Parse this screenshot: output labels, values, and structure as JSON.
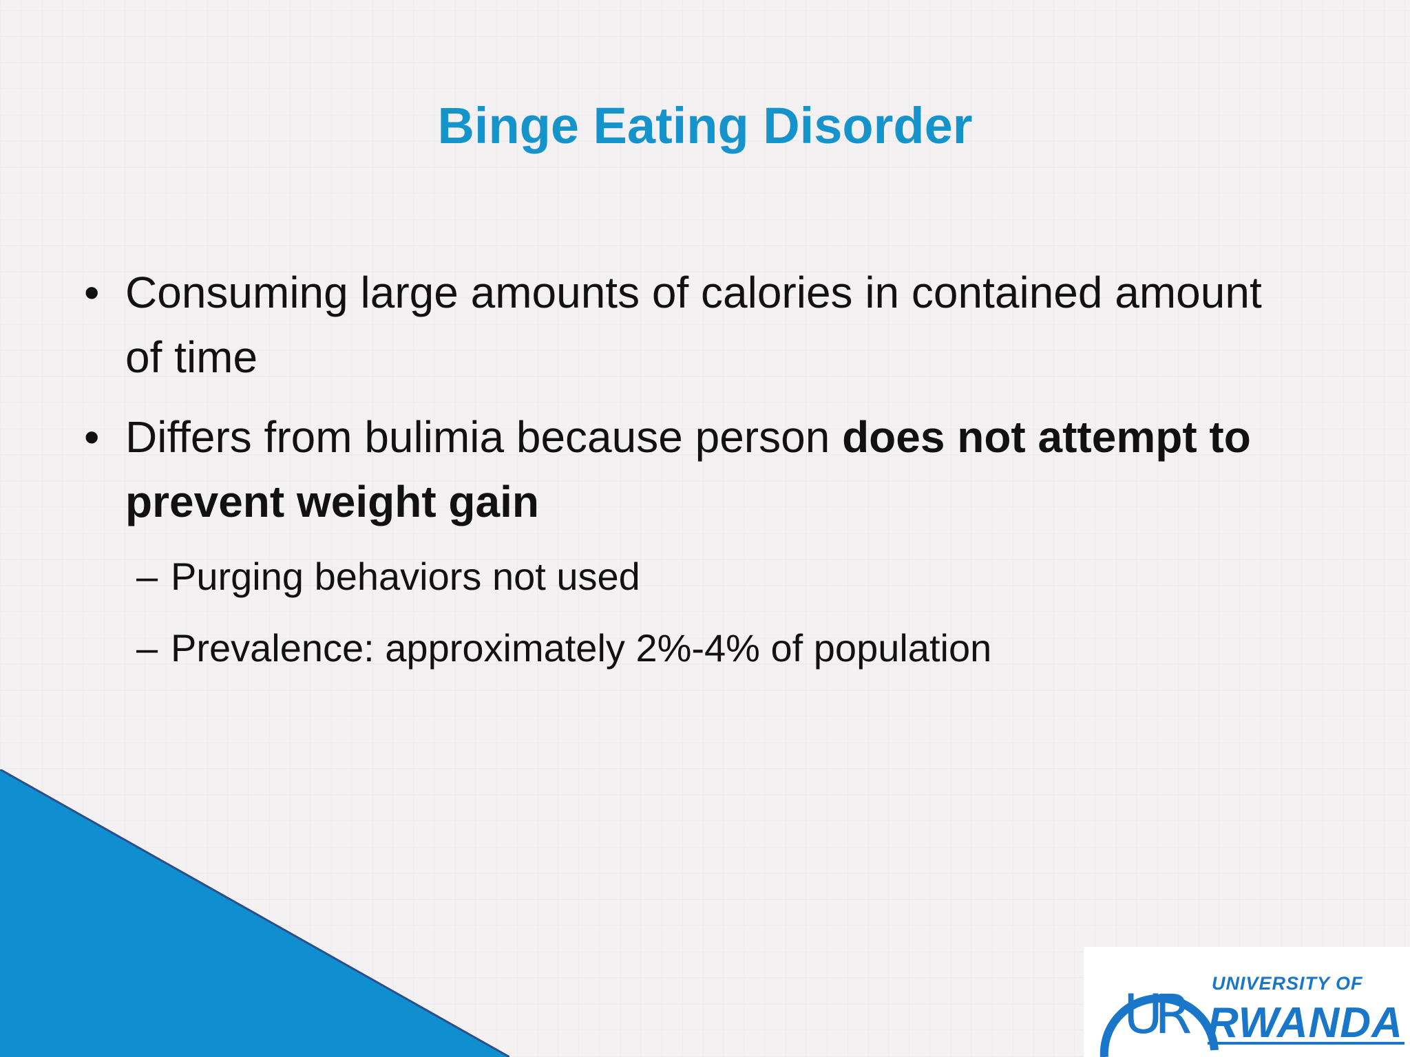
{
  "slide": {
    "title": "Binge Eating Disorder",
    "bullets": [
      {
        "marker": "•",
        "text": "Consuming large amounts of calories in contained amount of time"
      },
      {
        "marker": "•",
        "text_plain": "Differs from bulimia because person ",
        "text_bold": "does not attempt to prevent weight gain"
      }
    ],
    "sub_bullets": [
      {
        "marker": "–",
        "text": "Purging behaviors not used"
      },
      {
        "marker": "–",
        "text": "Prevalence: approximately 2%-4% of population"
      }
    ]
  },
  "logo": {
    "line1": "UNIVERSITY OF",
    "line2": "RWANDA",
    "initials": "UR"
  },
  "colors": {
    "title": "#1593cb",
    "accent_triangle": "#0f8fcf",
    "logo": "#1976c8"
  }
}
